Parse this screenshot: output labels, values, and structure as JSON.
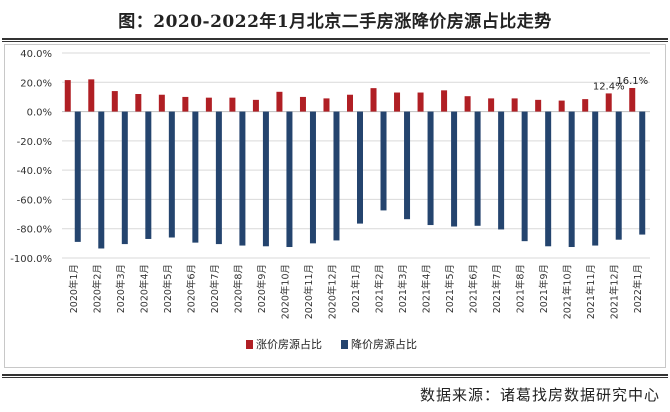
{
  "title": "图：2020-2022年1月北京二手房涨降价房源占比走势",
  "source": "数据来源：诸葛找房数据研究中心",
  "colors": {
    "up": "#b01f24",
    "down": "#24446e",
    "grid": "#d9d9d9"
  },
  "chart_data": {
    "type": "bar",
    "categories": [
      "2020年1月",
      "2020年2月",
      "2020年3月",
      "2020年4月",
      "2020年5月",
      "2020年6月",
      "2020年7月",
      "2020年8月",
      "2020年9月",
      "2020年10月",
      "2020年11月",
      "2020年12月",
      "2021年1月",
      "2021年2月",
      "2021年3月",
      "2021年4月",
      "2021年5月",
      "2021年6月",
      "2021年7月",
      "2021年8月",
      "2021年9月",
      "2021年10月",
      "2021年11月",
      "2021年12月",
      "2022年1月"
    ],
    "series": [
      {
        "name": "涨价房源占比",
        "values": [
          21.5,
          22.0,
          14.0,
          12.0,
          11.5,
          10.0,
          9.5,
          9.5,
          8.0,
          13.5,
          10.0,
          9.0,
          11.5,
          16.0,
          13.0,
          13.0,
          14.5,
          10.5,
          9.0,
          9.0,
          8.0,
          7.5,
          8.5,
          12.4,
          16.1
        ]
      },
      {
        "name": "降价房源占比",
        "values": [
          -89.0,
          -93.5,
          -90.5,
          -87.0,
          -86.0,
          -89.5,
          -90.5,
          -91.5,
          -92.0,
          -92.5,
          -90.0,
          -88.0,
          -76.5,
          -67.5,
          -73.5,
          -77.5,
          -78.5,
          -78.0,
          -80.5,
          -88.5,
          -92.0,
          -92.5,
          -91.5,
          -87.5,
          -84.0
        ]
      }
    ],
    "data_labels": [
      {
        "series": 0,
        "index": 23,
        "text": "12.4%"
      },
      {
        "series": 0,
        "index": 24,
        "text": "16.1%"
      }
    ],
    "ylim": [
      -100,
      40
    ],
    "yticks": [
      40,
      20,
      0,
      -20,
      -40,
      -60,
      -80,
      -100
    ],
    "ytick_labels": [
      "40.0%",
      "20.0%",
      "0.0%",
      "-20.0%",
      "-40.0%",
      "-60.0%",
      "-80.0%",
      "-100.0%"
    ],
    "grid": true,
    "legend_position": "bottom-left"
  }
}
